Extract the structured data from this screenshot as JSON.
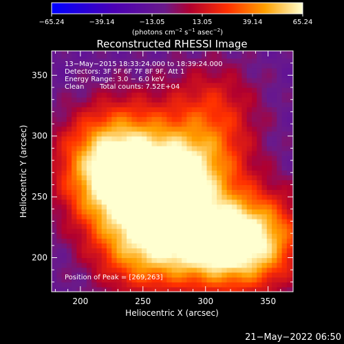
{
  "colorbar": {
    "ticks": [
      "−65.24",
      "−39.14",
      "−13.05",
      "13.05",
      "39.14",
      "65.24"
    ],
    "units_prefix": "(photons cm",
    "units_exp1": "−2",
    "units_mid": " s",
    "units_exp2": "−1",
    "units_mid2": " asec",
    "units_exp3": "−2",
    "units_suffix": ")"
  },
  "header": {
    "title": "Reconstructed RHESSI Image"
  },
  "annotations": {
    "time_range": "13−May−2015 18:33:24.000 to 18:39:24.000",
    "detectors": "Detectors: 3F 5F 6F 7F 8F 9F, Att 1",
    "energy": "Energy Range: 3.0 − 6.0 keV",
    "algorithm": "Clean",
    "total_counts": "Total counts: 7.52E+04",
    "peak": "Position of Peak = [269,263]"
  },
  "footer": {
    "date": "21−May−2022 06:50"
  },
  "chart_data": {
    "type": "heatmap",
    "title": "Reconstructed RHESSI Image",
    "xlabel": "Heliocentric X (arcsec)",
    "ylabel": "Heliocentric Y (arcsec)",
    "xlim": [
      177,
      370
    ],
    "ylim": [
      172,
      370
    ],
    "xticks": [
      200,
      250,
      300,
      350
    ],
    "yticks": [
      200,
      250,
      300,
      350
    ],
    "color_range": [
      -65.24,
      65.24
    ],
    "colormap": "blue-purple-red-orange-yellow-white",
    "peak": [
      269,
      263
    ],
    "sources": [
      {
        "x": 268,
        "y": 262,
        "amp": 62
      },
      {
        "x": 295,
        "y": 215,
        "amp": 60
      },
      {
        "x": 225,
        "y": 252,
        "amp": 45
      },
      {
        "x": 215,
        "y": 283,
        "amp": 38
      },
      {
        "x": 248,
        "y": 208,
        "amp": 50
      },
      {
        "x": 330,
        "y": 208,
        "amp": 42
      },
      {
        "x": 345,
        "y": 220,
        "amp": 35
      },
      {
        "x": 300,
        "y": 280,
        "amp": 34
      },
      {
        "x": 305,
        "y": 325,
        "amp": 26
      },
      {
        "x": 240,
        "y": 300,
        "amp": 30
      }
    ]
  }
}
